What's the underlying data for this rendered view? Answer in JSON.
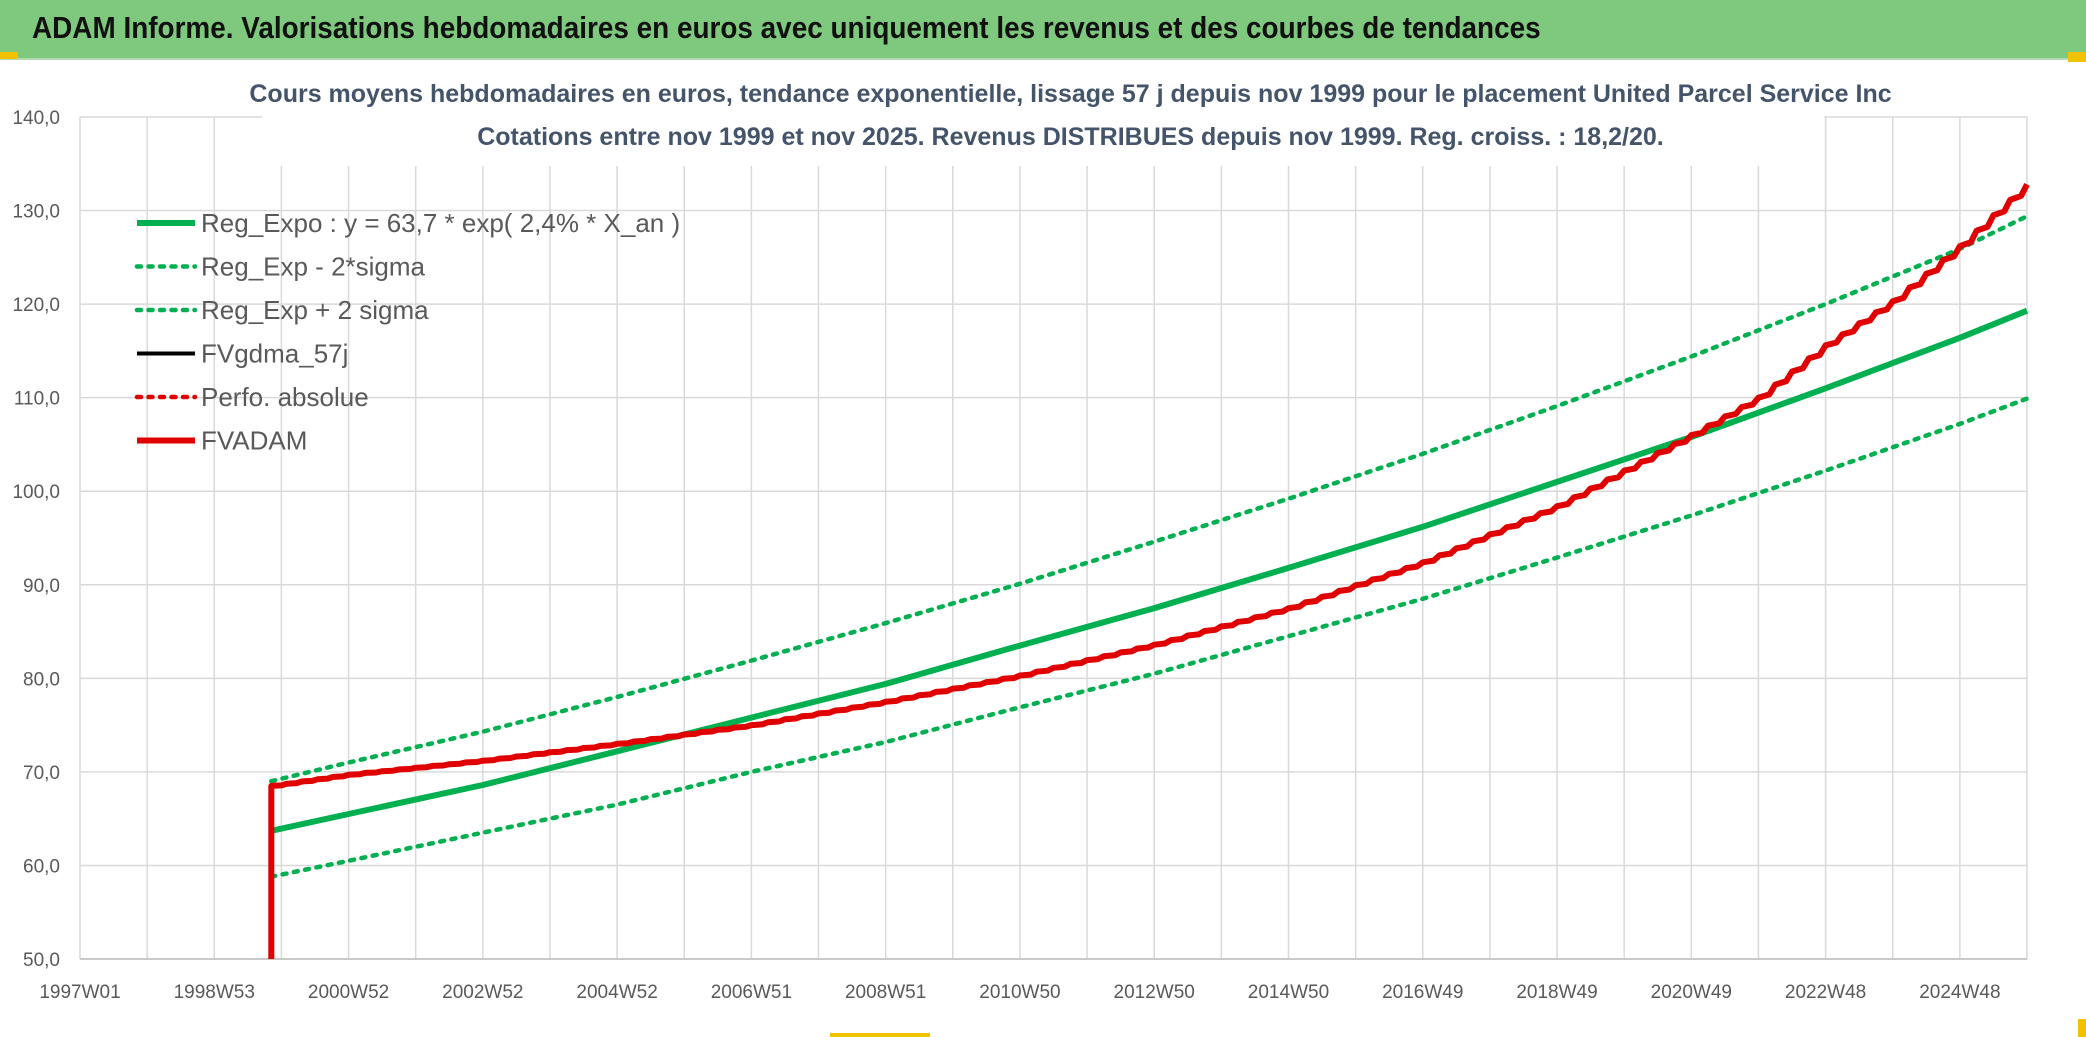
{
  "header": {
    "title": "ADAM Informe. Valorisations hebdomadaires en euros avec uniquement les revenus et des courbes de tendances"
  },
  "colors": {
    "banner": "#7fc97f",
    "reg_expo": "#00b050",
    "sigma": "#00b050",
    "fvgdma": "#000000",
    "perfo": "#e00000",
    "fvadam": "#e00000",
    "grid": "#d9d9d9",
    "corner": "#f2c200"
  },
  "chart_data": {
    "type": "line",
    "title_lines": [
      "Cours moyens hebdomadaires en euros, tendance exponentielle, lissage 57 j depuis nov 1999 pour le placement United Parcel Service Inc",
      "Cotations entre nov 1999 et nov 2025. Revenus DISTRIBUES depuis nov 1999. Reg. croiss. : 18,2/20."
    ],
    "xlabel": "",
    "ylabel": "",
    "ylim": [
      50,
      140
    ],
    "y_ticks": [
      "50,0",
      "60,0",
      "70,0",
      "80,0",
      "90,0",
      "100,0",
      "110,0",
      "120,0",
      "130,0",
      "140,0"
    ],
    "x_range_years": [
      1997.0,
      2026.0
    ],
    "x_tick_labels": [
      {
        "label": "1997W01",
        "year": 1997.0
      },
      {
        "label": "1998W53",
        "year": 1999.0
      },
      {
        "label": "2000W52",
        "year": 2001.0
      },
      {
        "label": "2002W52",
        "year": 2003.0
      },
      {
        "label": "2004W52",
        "year": 2005.0
      },
      {
        "label": "2006W51",
        "year": 2007.0
      },
      {
        "label": "2008W51",
        "year": 2009.0
      },
      {
        "label": "2010W50",
        "year": 2011.0
      },
      {
        "label": "2012W50",
        "year": 2013.0
      },
      {
        "label": "2014W50",
        "year": 2015.0
      },
      {
        "label": "2016W49",
        "year": 2017.0
      },
      {
        "label": "2018W49",
        "year": 2019.0
      },
      {
        "label": "2020W49",
        "year": 2021.0
      },
      {
        "label": "2022W48",
        "year": 2023.0
      },
      {
        "label": "2024W48",
        "year": 2025.0
      }
    ],
    "grid": true,
    "legend_position": "top-left",
    "series": [
      {
        "name": "Reg_Expo : y = 63,7 * exp( 2,4% *  X_an )",
        "style": "solid-thick",
        "color": "#00b050",
        "points": [
          [
            1999.85,
            63.7
          ],
          [
            2001.0,
            65.5
          ],
          [
            2003.0,
            68.6
          ],
          [
            2005.0,
            72.2
          ],
          [
            2007.0,
            75.8
          ],
          [
            2009.0,
            79.4
          ],
          [
            2011.0,
            83.5
          ],
          [
            2013.0,
            87.5
          ],
          [
            2015.0,
            91.8
          ],
          [
            2017.0,
            96.2
          ],
          [
            2019.0,
            101.0
          ],
          [
            2021.0,
            105.8
          ],
          [
            2023.0,
            111.0
          ],
          [
            2025.0,
            116.4
          ],
          [
            2026.0,
            119.3
          ]
        ]
      },
      {
        "name": "Reg_Exp - 2*sigma",
        "style": "dotted",
        "color": "#00b050",
        "points": [
          [
            1999.85,
            58.8
          ],
          [
            2001.0,
            60.5
          ],
          [
            2003.0,
            63.5
          ],
          [
            2005.0,
            66.5
          ],
          [
            2007.0,
            70.0
          ],
          [
            2009.0,
            73.2
          ],
          [
            2011.0,
            76.9
          ],
          [
            2013.0,
            80.5
          ],
          [
            2015.0,
            84.5
          ],
          [
            2017.0,
            88.5
          ],
          [
            2019.0,
            92.9
          ],
          [
            2021.0,
            97.4
          ],
          [
            2023.0,
            102.2
          ],
          [
            2025.0,
            107.2
          ],
          [
            2026.0,
            109.9
          ]
        ]
      },
      {
        "name": "Reg_Exp + 2 sigma",
        "style": "dotted",
        "color": "#00b050",
        "points": [
          [
            1999.85,
            69.0
          ],
          [
            2001.0,
            71.0
          ],
          [
            2003.0,
            74.3
          ],
          [
            2005.0,
            78.0
          ],
          [
            2007.0,
            81.9
          ],
          [
            2009.0,
            85.9
          ],
          [
            2011.0,
            90.1
          ],
          [
            2013.0,
            94.6
          ],
          [
            2015.0,
            99.2
          ],
          [
            2017.0,
            104.0
          ],
          [
            2019.0,
            109.1
          ],
          [
            2021.0,
            114.4
          ],
          [
            2023.0,
            120.0
          ],
          [
            2025.0,
            125.9
          ],
          [
            2026.0,
            129.4
          ]
        ]
      },
      {
        "name": "FVgdma_57j",
        "style": "solid",
        "color": "#000000",
        "points": []
      },
      {
        "name": "Perfo. absolue",
        "style": "dotted",
        "color": "#e00000",
        "points": []
      },
      {
        "name": "FVADAM",
        "style": "solid-thick-stepped",
        "color": "#e00000",
        "points": [
          [
            1999.85,
            50.0
          ],
          [
            1999.85,
            68.5
          ],
          [
            2001.0,
            69.7
          ],
          [
            2003.0,
            71.2
          ],
          [
            2005.0,
            73.0
          ],
          [
            2007.0,
            75.0
          ],
          [
            2009.0,
            77.5
          ],
          [
            2011.0,
            80.3
          ],
          [
            2013.0,
            83.6
          ],
          [
            2015.0,
            87.5
          ],
          [
            2017.0,
            92.4
          ],
          [
            2019.0,
            98.4
          ],
          [
            2021.0,
            106.0
          ],
          [
            2022.0,
            110.0
          ],
          [
            2023.0,
            115.6
          ],
          [
            2024.0,
            120.3
          ],
          [
            2025.0,
            126.2
          ],
          [
            2026.0,
            132.8
          ]
        ]
      }
    ]
  }
}
